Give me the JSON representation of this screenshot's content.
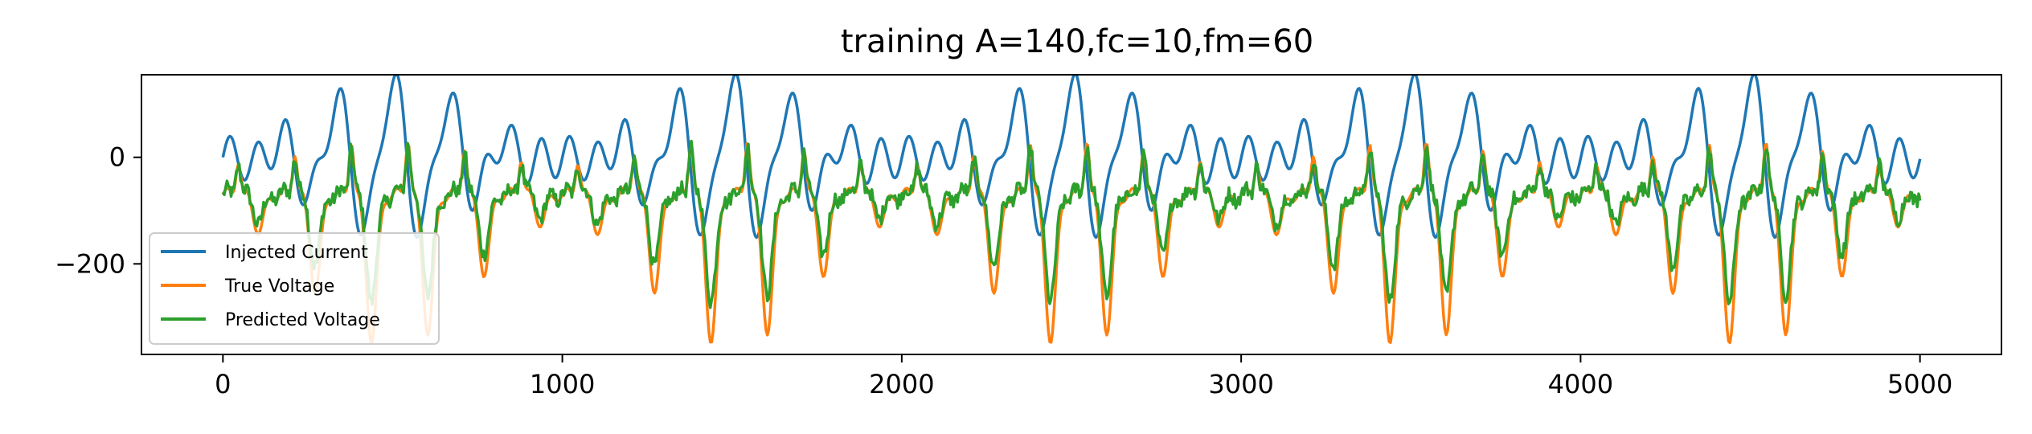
{
  "chart_data": {
    "type": "line",
    "title": "training A=140,fc=10,fm=60",
    "xlabel": "",
    "ylabel": "",
    "xlim": [
      -240,
      5240
    ],
    "ylim": [
      -370,
      155
    ],
    "xticks": [
      0,
      1000,
      2000,
      3000,
      4000,
      5000
    ],
    "xtick_labels": [
      "0",
      "1000",
      "2000",
      "3000",
      "4000",
      "5000"
    ],
    "yticks": [
      0,
      -200
    ],
    "ytick_labels": [
      "0",
      "−200"
    ],
    "grid": false,
    "legend_position": "lower-left",
    "series": [
      {
        "name": "Injected Current",
        "color": "#1f77b4",
        "generator": {
          "kind": "am",
          "amplitude": 140,
          "carrier_period": 166.7,
          "modulation_period": 1000,
          "n": 5000
        }
      },
      {
        "name": "True Voltage",
        "color": "#ff7f0e",
        "generator": {
          "kind": "response",
          "rest": -70,
          "peak": 40,
          "trough": -350,
          "n": 5000
        }
      },
      {
        "name": "Predicted Voltage",
        "color": "#2ca02c",
        "generator": {
          "kind": "response-noisy",
          "rest": -70,
          "peak": 35,
          "trough": -270,
          "n": 5000
        }
      }
    ]
  }
}
